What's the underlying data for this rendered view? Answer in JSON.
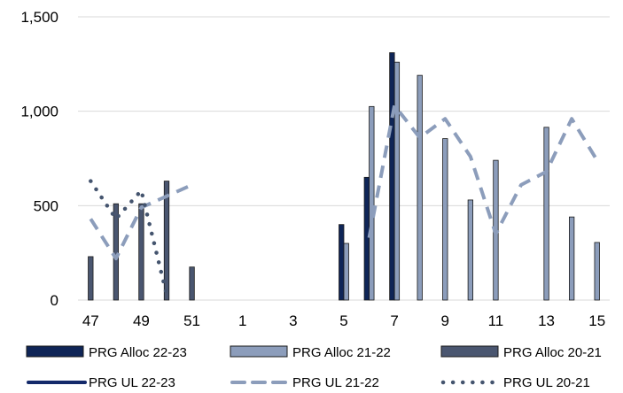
{
  "chart_data": {
    "type": "bar",
    "categories": [
      "47",
      "48",
      "49",
      "50",
      "51",
      "52",
      "1",
      "2",
      "3",
      "4",
      "5",
      "6",
      "7",
      "8",
      "9",
      "10",
      "11",
      "12",
      "13",
      "14",
      "15"
    ],
    "x_tick_labels": [
      "47",
      "49",
      "51",
      "1",
      "3",
      "5",
      "7",
      "9",
      "11",
      "13",
      "15"
    ],
    "ylim": [
      0,
      1500
    ],
    "y_ticks": [
      "0",
      "500",
      "1,000",
      "1,500"
    ],
    "y_tick_values": [
      0,
      500,
      1000,
      1500
    ],
    "grid": true,
    "legend_position": "bottom",
    "bar_series": [
      {
        "name": "PRG Alloc 22-23",
        "color": "#0f2557",
        "values": [
          null,
          null,
          null,
          null,
          null,
          null,
          null,
          null,
          null,
          null,
          400,
          650,
          1310,
          null,
          null,
          null,
          null,
          null,
          null,
          null,
          null
        ]
      },
      {
        "name": "PRG Alloc 21-22",
        "color": "#8c9dbb",
        "values": [
          null,
          null,
          null,
          null,
          null,
          null,
          null,
          null,
          null,
          null,
          300,
          1025,
          1260,
          1190,
          855,
          530,
          740,
          null,
          915,
          440,
          305
        ]
      },
      {
        "name": "PRG Alloc 20-21",
        "color": "#4a5670",
        "values": [
          230,
          510,
          510,
          630,
          175,
          null,
          null,
          null,
          null,
          null,
          null,
          null,
          null,
          null,
          null,
          null,
          null,
          null,
          null,
          null,
          null
        ]
      }
    ],
    "line_series": [
      {
        "name": "PRG UL 22-23",
        "color": "#13296a",
        "dash": "solid",
        "values": [
          null,
          null,
          null,
          null,
          null,
          null,
          null,
          null,
          null,
          null,
          null,
          null,
          null,
          null,
          null,
          null,
          null,
          null,
          null,
          null,
          null
        ]
      },
      {
        "name": "PRG UL 21-22",
        "color": "#8c9dbb",
        "dash": "dash",
        "values": [
          430,
          220,
          490,
          550,
          610,
          null,
          null,
          null,
          null,
          null,
          null,
          330,
          1030,
          860,
          960,
          760,
          350,
          610,
          680,
          960,
          740
        ]
      },
      {
        "name": "PRG UL 20-21",
        "color": "#44546e",
        "dash": "dot",
        "values": [
          630,
          430,
          580,
          30,
          null,
          null,
          null,
          null,
          null,
          null,
          null,
          null,
          null,
          null,
          null,
          null,
          null,
          null,
          null,
          null,
          null
        ]
      }
    ],
    "legend": [
      "PRG Alloc 22-23",
      "PRG Alloc 21-22",
      "PRG Alloc 20-21",
      "PRG UL 22-23",
      "PRG UL 21-22",
      "PRG UL 20-21"
    ]
  }
}
